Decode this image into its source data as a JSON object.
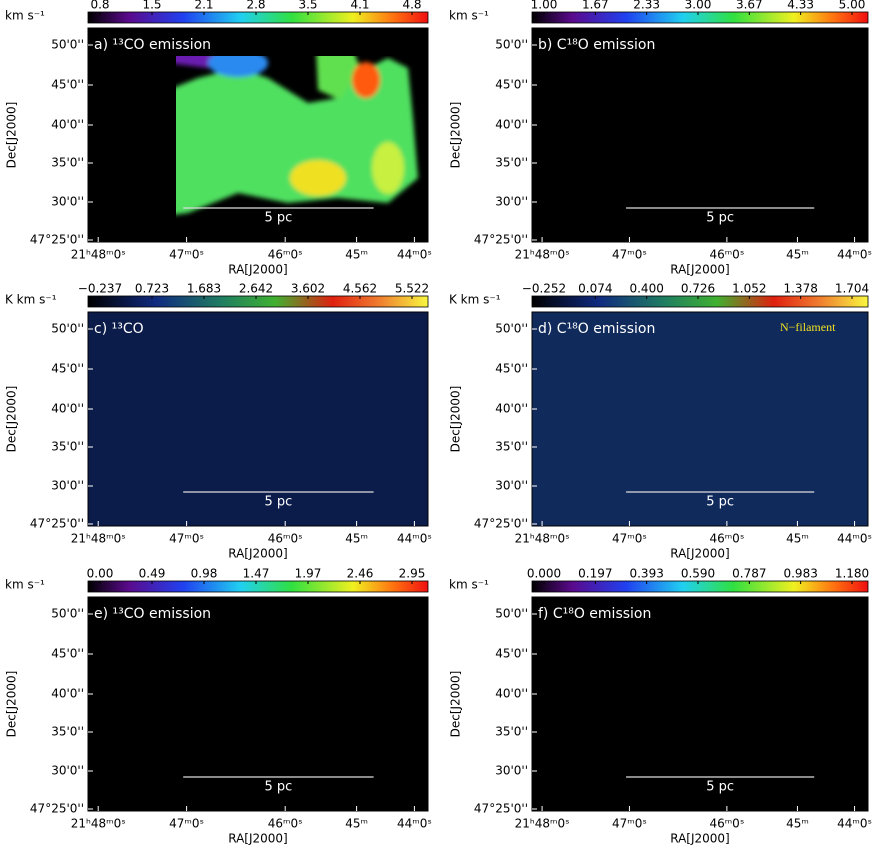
{
  "axes": {
    "xticks": [
      "21ʰ48ᵐ0ˢ",
      "47ᵐ0ˢ",
      "46ᵐ0ˢ",
      "45ᵐ",
      "44ᵐ0ˢ"
    ],
    "yticks": [
      "50'0''",
      "45'0''",
      "40'0''",
      "35'0''",
      "30'0''",
      "47°25'0''"
    ],
    "xlabel": "RA[J2000]",
    "ylabel": "Dec[J2000]",
    "scale_bar": "5 pc"
  },
  "panels": [
    {
      "label": "a) ¹³CO emission",
      "unit": "km s⁻¹",
      "colorbar_ticks": [
        "0.8",
        "1.5",
        "2.1",
        "2.8",
        "3.5",
        "4.1",
        "4.8"
      ]
    },
    {
      "label": "b) C¹⁸O emission",
      "unit": "km s⁻¹",
      "colorbar_ticks": [
        "1.00",
        "1.67",
        "2.33",
        "3.00",
        "3.67",
        "4.33",
        "5.00"
      ]
    },
    {
      "label": "c) ¹³CO",
      "unit": "K km s⁻¹",
      "colorbar_ticks": [
        "−0.237",
        "0.723",
        "1.683",
        "2.642",
        "3.602",
        "4.562",
        "5.522"
      ]
    },
    {
      "label": "d) C¹⁸O emission",
      "unit": "K km s⁻¹",
      "colorbar_ticks": [
        "−0.252",
        "0.074",
        "0.400",
        "0.726",
        "1.052",
        "1.378",
        "1.704"
      ],
      "annotation": "N−filament"
    },
    {
      "label": "e) ¹³CO emission",
      "unit": "km s⁻¹",
      "colorbar_ticks": [
        "0.00",
        "0.49",
        "0.98",
        "1.47",
        "1.97",
        "2.46",
        "2.95"
      ]
    },
    {
      "label": "f) C¹⁸O emission",
      "unit": "km s⁻¹",
      "colorbar_ticks": [
        "0.000",
        "0.197",
        "0.393",
        "0.590",
        "0.787",
        "0.983",
        "1.180"
      ]
    }
  ]
}
